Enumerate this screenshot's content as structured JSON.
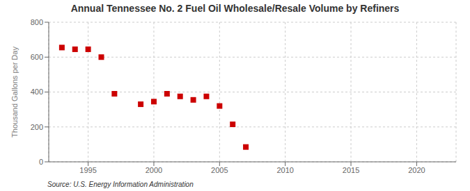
{
  "chart_data": {
    "type": "scatter",
    "title": "Annual Tennessee No. 2 Fuel Oil Wholesale/Resale Volume by Refiners",
    "ylabel": "Thousand Gallons per Day",
    "annotations": [
      "Source: U.S. Energy Information Administration"
    ],
    "x": [
      1993,
      1994,
      1995,
      1996,
      1997,
      1999,
      2000,
      2001,
      2002,
      2003,
      2004,
      2005,
      2006,
      2007
    ],
    "values": [
      655,
      645,
      645,
      600,
      390,
      330,
      345,
      390,
      375,
      355,
      375,
      320,
      215,
      85
    ],
    "color": "#cc0000",
    "marker": "square",
    "xlim": [
      1992,
      2023
    ],
    "ylim": [
      0,
      800
    ],
    "xticks": [
      1995,
      2000,
      2005,
      2010,
      2015,
      2020
    ],
    "yticks": [
      0,
      200,
      400,
      600,
      800
    ],
    "grid": true
  }
}
